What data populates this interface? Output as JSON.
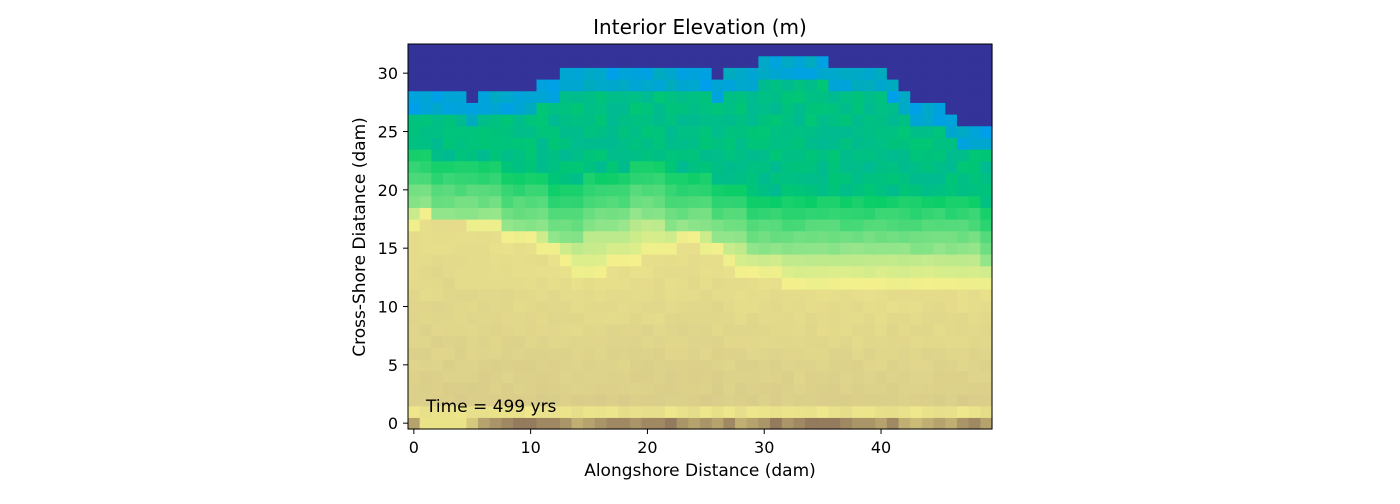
{
  "chart_data": {
    "type": "heatmap",
    "title": "Interior Elevation (m)",
    "xlabel": "Alongshore Distance (dam)",
    "ylabel": "Cross-Shore Diatance (dam)",
    "annotation": "Time = 499 yrs",
    "colormap": "terrain",
    "xlim": [
      -0.5,
      49.5
    ],
    "ylim": [
      -0.5,
      32.5
    ],
    "x_ticks": [
      0,
      10,
      20,
      30,
      40
    ],
    "y_ticks": [
      0,
      5,
      10,
      15,
      20,
      25,
      30
    ],
    "x_tick_labels": [
      "0",
      "10",
      "20",
      "30",
      "40"
    ],
    "y_tick_labels": [
      "0",
      "5",
      "10",
      "15",
      "20",
      "25",
      "30"
    ],
    "grid": false,
    "colors": {
      "water": "#333399",
      "ocean_blue": "#0099ff",
      "teal": "#00b4a0",
      "green": "#00cc66",
      "light_green": "#99e68c",
      "yellow": "#f5f08c",
      "sand": "#d6c98a",
      "dune_brown": "#8a6e58"
    },
    "n_columns": 50,
    "n_rows": 33,
    "water_boundary_row_by_column": [
      28,
      28,
      28,
      28,
      28,
      27,
      28,
      28,
      28,
      28,
      28,
      29,
      29,
      30,
      30,
      30,
      30,
      30,
      30,
      30,
      30,
      30,
      30,
      30,
      30,
      30,
      29,
      30,
      30,
      30,
      31,
      31,
      31,
      31,
      31,
      31,
      30,
      30,
      30,
      30,
      30,
      29,
      28,
      27,
      27,
      27,
      26,
      25,
      25,
      25
    ],
    "green_start_row_by_column": [
      19,
      19,
      18,
      18,
      18,
      18,
      18,
      18,
      17,
      17,
      17,
      17,
      16,
      16,
      16,
      17,
      17,
      17,
      17,
      18,
      18,
      18,
      17,
      17,
      17,
      17,
      16,
      16,
      16,
      15,
      15,
      15,
      15,
      15,
      15,
      15,
      15,
      15,
      15,
      15,
      15,
      15,
      15,
      15,
      15,
      15,
      15,
      15,
      15,
      14
    ],
    "sand_top_row_by_column": [
      17,
      18,
      18,
      18,
      18,
      17,
      17,
      17,
      16,
      16,
      16,
      15,
      15,
      14,
      13,
      13,
      13,
      14,
      14,
      14,
      15,
      15,
      15,
      16,
      16,
      15,
      15,
      14,
      13,
      13,
      13,
      13,
      12,
      12,
      12,
      12,
      12,
      12,
      12,
      12,
      12,
      12,
      12,
      12,
      12,
      12,
      12,
      12,
      12,
      12
    ],
    "dune_elevation_by_column": [
      0.6,
      0.1,
      0.1,
      0.1,
      0.1,
      0.3,
      0.6,
      0.7,
      0.8,
      0.9,
      0.9,
      0.8,
      0.8,
      0.7,
      0.5,
      0.6,
      0.7,
      0.8,
      0.8,
      0.7,
      0.8,
      0.8,
      0.9,
      0.7,
      0.6,
      0.7,
      0.6,
      0.8,
      0.5,
      0.6,
      0.7,
      0.9,
      0.7,
      0.8,
      0.9,
      0.9,
      0.9,
      0.8,
      0.7,
      0.7,
      0.6,
      0.8,
      0.5,
      0.4,
      0.5,
      0.6,
      0.5,
      0.7,
      0.8,
      0.6
    ]
  }
}
